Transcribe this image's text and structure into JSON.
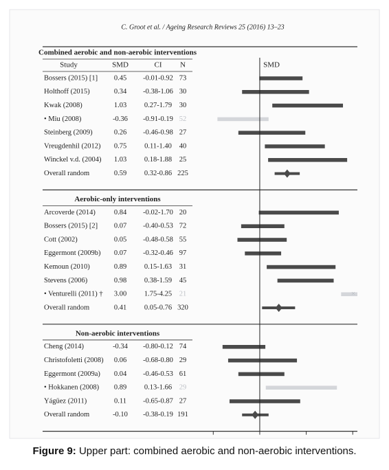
{
  "header": "C. Groot et al. / Ageing Research Reviews 25 (2016) 13–23",
  "caption": {
    "label": "Figure 9:",
    "text": "Upper part: combined aerobic and non-aerobic interventions."
  },
  "chart_data": {
    "type": "forest",
    "columns": [
      "Study",
      "SMD",
      "CI",
      "N"
    ],
    "x_label": "SMD",
    "xlim": [
      -1.3,
      2.1
    ],
    "xticks": [
      -1,
      0,
      1,
      2
    ],
    "bar_color": "#4a4a4a",
    "excluded_color": "#d4d6da",
    "sections": [
      {
        "title": "Combined aerobic and non-aerobic interventions",
        "rows": [
          {
            "study": "Bossers (2015) [1]",
            "smd": 0.45,
            "ci_low": -0.01,
            "ci_high": 0.92,
            "ci_label": "-0.01-0.92",
            "n": 73
          },
          {
            "study": "Holthoff (2015)",
            "smd": 0.34,
            "ci_low": -0.38,
            "ci_high": 1.06,
            "ci_label": "-0.38-1.06",
            "n": 30
          },
          {
            "study": "Kwak (2008)",
            "smd": 1.03,
            "ci_low": 0.27,
            "ci_high": 1.79,
            "ci_label": "0.27-1.79",
            "n": 30
          },
          {
            "study": "• Miu (2008)",
            "smd": -0.36,
            "ci_low": -0.91,
            "ci_high": 0.19,
            "ci_label": "-0.91-0.19",
            "n": 52,
            "excluded": true
          },
          {
            "study": "Steinberg (2009)",
            "smd": 0.26,
            "ci_low": -0.46,
            "ci_high": 0.98,
            "ci_label": "-0.46-0.98",
            "n": 27
          },
          {
            "study": "Vreugdenhil (2012)",
            "smd": 0.75,
            "ci_low": 0.11,
            "ci_high": 1.4,
            "ci_label": "0.11-1.40",
            "n": 40
          },
          {
            "study": "Winckel v.d. (2004)",
            "smd": 1.03,
            "ci_low": 0.18,
            "ci_high": 1.88,
            "ci_label": "0.18-1.88",
            "n": 25
          },
          {
            "study": "Overall random",
            "smd": 0.59,
            "ci_low": 0.32,
            "ci_high": 0.86,
            "ci_label": "0.32-0.86",
            "n": 225,
            "pooled": true
          }
        ]
      },
      {
        "title": "Aerobic-only interventions",
        "rows": [
          {
            "study": "Arcoverde (2014)",
            "smd": 0.84,
            "ci_low": -0.02,
            "ci_high": 1.7,
            "ci_label": "-0.02-1.70",
            "n": 20
          },
          {
            "study": "Bossers (2015) [2]",
            "smd": 0.07,
            "ci_low": -0.4,
            "ci_high": 0.53,
            "ci_label": "-0.40-0.53",
            "n": 72
          },
          {
            "study": "Cott (2002)",
            "smd": 0.05,
            "ci_low": -0.48,
            "ci_high": 0.58,
            "ci_label": "-0.48-0.58",
            "n": 55
          },
          {
            "study": "Eggermont (2009b)",
            "smd": 0.07,
            "ci_low": -0.32,
            "ci_high": 0.46,
            "ci_label": "-0.32-0.46",
            "n": 97
          },
          {
            "study": "Kemoun (2010)",
            "smd": 0.89,
            "ci_low": 0.15,
            "ci_high": 1.63,
            "ci_label": "0.15-1.63",
            "n": 31
          },
          {
            "study": "Stevens (2006)",
            "smd": 0.98,
            "ci_low": 0.38,
            "ci_high": 1.59,
            "ci_label": "0.38-1.59",
            "n": 45
          },
          {
            "study": "• Venturelli (2011) †",
            "smd": 3.0,
            "smd_label": "3.00",
            "ci_low": 1.75,
            "ci_high": 4.25,
            "ci_label": "1.75-4.25",
            "n": 21,
            "excluded": true
          },
          {
            "study": "Overall random",
            "smd": 0.41,
            "ci_low": 0.05,
            "ci_high": 0.76,
            "ci_label": "0.05-0.76",
            "n": 320,
            "pooled": true
          }
        ]
      },
      {
        "title": "Non-aerobic interventions",
        "rows": [
          {
            "study": "Cheng (2014)",
            "smd": -0.34,
            "ci_low": -0.8,
            "ci_high": 0.12,
            "ci_label": "-0.80-0.12",
            "n": 74
          },
          {
            "study": "Christofoletti (2008)",
            "smd": 0.06,
            "ci_low": -0.68,
            "ci_high": 0.8,
            "ci_label": "-0.68-0.80",
            "n": 29
          },
          {
            "study": "Eggermont (2009a)",
            "smd": 0.04,
            "ci_low": -0.46,
            "ci_high": 0.53,
            "ci_label": "-0.46-0.53",
            "n": 61
          },
          {
            "study": "• Hokkanen (2008)",
            "smd": 0.89,
            "ci_low": 0.13,
            "ci_high": 1.66,
            "ci_label": "0.13-1.66",
            "n": 29,
            "excluded": true
          },
          {
            "study": "Yágüez (2011)",
            "smd": 0.11,
            "ci_low": -0.65,
            "ci_high": 0.87,
            "ci_label": "-0.65-0.87",
            "n": 27
          },
          {
            "study": "Overall random",
            "smd": -0.1,
            "smd_label": "-0.10",
            "ci_low": -0.38,
            "ci_high": 0.19,
            "ci_label": "-0.38-0.19",
            "n": 191,
            "pooled": true
          }
        ]
      }
    ]
  }
}
